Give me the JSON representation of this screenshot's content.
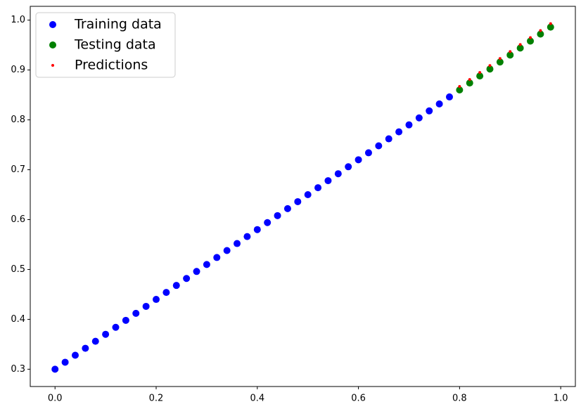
{
  "chart_data": {
    "type": "scatter",
    "xlim": [
      -0.049,
      1.029
    ],
    "ylim": [
      0.2653,
      1.0277
    ],
    "xticks": [
      {
        "value": 0,
        "label": "0.0"
      },
      0.2,
      0.4,
      0.6,
      0.8,
      {
        "value": 1,
        "label": "1.0"
      }
    ],
    "yticks": [
      0.3,
      0.4,
      0.5,
      0.6,
      0.7,
      0.8,
      0.9,
      {
        "value": 1,
        "label": "1.0"
      }
    ],
    "legend": "upper left",
    "series": [
      {
        "name": "Training data",
        "color": "#0000ff",
        "x": [
          0,
          0.02,
          0.04,
          0.06,
          0.08,
          0.1,
          0.12,
          0.14,
          0.16,
          0.18,
          0.2,
          0.22,
          0.24,
          0.26,
          0.28,
          0.3,
          0.32,
          0.34,
          0.36,
          0.38,
          0.4,
          0.42,
          0.44,
          0.46,
          0.48,
          0.5,
          0.52,
          0.54,
          0.56,
          0.58,
          0.6,
          0.62,
          0.64,
          0.66,
          0.68,
          0.7,
          0.72,
          0.74,
          0.76,
          0.78
        ],
        "values": [
          0.3,
          0.314,
          0.328,
          0.342,
          0.356,
          0.37,
          0.384,
          0.398,
          0.412,
          0.426,
          0.44,
          0.454,
          0.468,
          0.482,
          0.496,
          0.51,
          0.524,
          0.538,
          0.552,
          0.566,
          0.58,
          0.594,
          0.608,
          0.622,
          0.636,
          0.65,
          0.664,
          0.678,
          0.692,
          0.706,
          0.72,
          0.734,
          0.748,
          0.762,
          0.776,
          0.79,
          0.804,
          0.818,
          0.832,
          0.846
        ]
      },
      {
        "name": "Testing data",
        "color": "#008000",
        "x": [
          0.8,
          0.82,
          0.84,
          0.86,
          0.88,
          0.9,
          0.92,
          0.94,
          0.96,
          0.98
        ],
        "values": [
          0.86,
          0.874,
          0.888,
          0.902,
          0.916,
          0.93,
          0.944,
          0.958,
          0.972,
          0.986
        ]
      },
      {
        "name": "Predictions",
        "color": "#ff0000",
        "x": [
          0.8,
          0.82,
          0.84,
          0.86,
          0.88,
          0.9,
          0.92,
          0.94,
          0.96,
          0.98
        ],
        "values": [
          0.867,
          0.881,
          0.895,
          0.909,
          0.923,
          0.937,
          0.951,
          0.965,
          0.979,
          0.993
        ]
      }
    ]
  }
}
